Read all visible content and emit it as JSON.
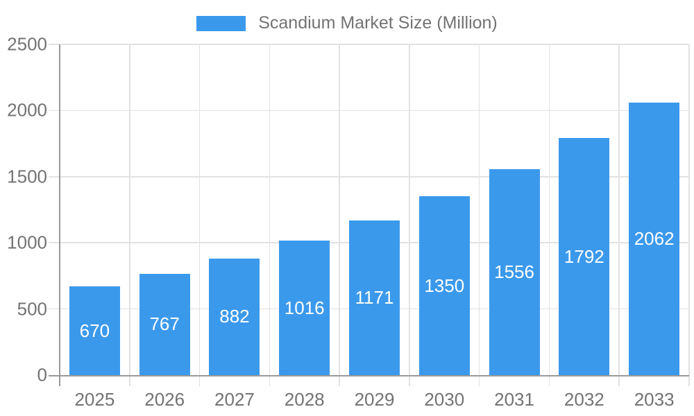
{
  "chart_data": {
    "type": "bar",
    "title": "Scandium Market Size (Million)",
    "legend": {
      "label": "Scandium Market Size (Million)",
      "position": "top"
    },
    "categories": [
      "2025",
      "2026",
      "2027",
      "2028",
      "2029",
      "2030",
      "2031",
      "2032",
      "2033"
    ],
    "series": [
      {
        "name": "Scandium Market Size (Million)",
        "values": [
          670,
          767,
          882,
          1016,
          1171,
          1350,
          1556,
          1792,
          2062
        ]
      }
    ],
    "xlabel": "",
    "ylabel": "",
    "ylim": [
      0,
      2500
    ],
    "yticks": [
      0,
      500,
      1000,
      1500,
      2000,
      2500
    ],
    "grid": true,
    "value_labels": "inside-center",
    "colors": {
      "bar": "#3B99EC",
      "grid": "#E2E2E2",
      "axis": "#999999",
      "tick_label": "#737373",
      "value_label": "#FFFFFF",
      "background": "#FFFFFF"
    }
  }
}
